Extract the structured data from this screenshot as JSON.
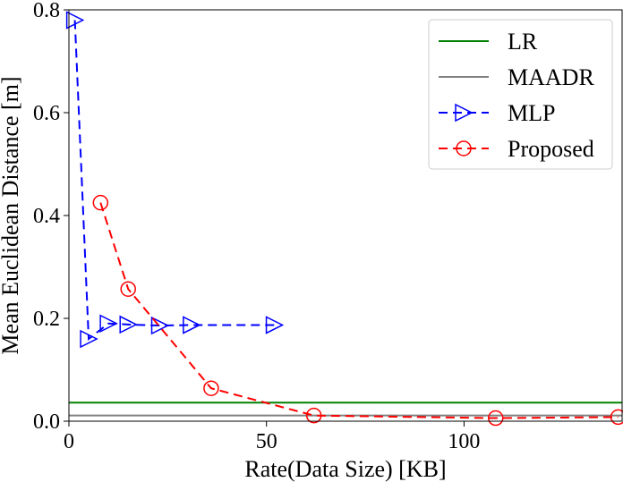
{
  "chart_data": {
    "type": "line",
    "title": "",
    "xlabel": "Rate(Data Size) [KB]",
    "ylabel": "Mean Euclidean Distance [m]",
    "xlim": [
      0,
      140
    ],
    "ylim": [
      0,
      0.8
    ],
    "xticks": [
      {
        "value": 0,
        "label": "0"
      },
      {
        "value": 50,
        "label": "50"
      },
      {
        "value": 100,
        "label": "100"
      }
    ],
    "yticks": [
      {
        "value": 0.0,
        "label": "0.0"
      },
      {
        "value": 0.2,
        "label": "0.2"
      },
      {
        "value": 0.4,
        "label": "0.4"
      },
      {
        "value": 0.6,
        "label": "0.6"
      },
      {
        "value": 0.8,
        "label": "0.8"
      }
    ],
    "grid": false,
    "legend_position": "top-right",
    "series": [
      {
        "name": "LR",
        "kind": "hline",
        "color": "#008000",
        "y": 0.036
      },
      {
        "name": "MAADR",
        "kind": "hline",
        "color": "#808080",
        "y": 0.011
      },
      {
        "name": "MLP",
        "kind": "line",
        "color": "#0000ff",
        "marker": "triangle-right",
        "x": [
          1.5,
          5,
          10,
          15,
          23,
          31,
          52
        ],
        "y": [
          0.78,
          0.16,
          0.19,
          0.188,
          0.186,
          0.187,
          0.187
        ]
      },
      {
        "name": "Proposed",
        "kind": "line",
        "color": "#ff0000",
        "marker": "circle",
        "x": [
          8,
          15,
          36,
          62,
          108,
          139
        ],
        "y": [
          0.425,
          0.257,
          0.064,
          0.011,
          0.006,
          0.008
        ]
      }
    ]
  }
}
